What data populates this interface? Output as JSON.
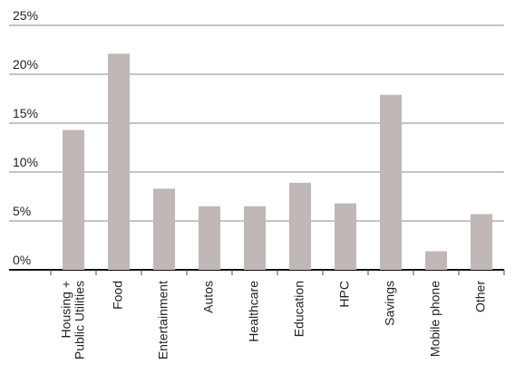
{
  "chart_data": {
    "type": "bar",
    "categories": [
      "Housing +\nPublic Utilities",
      "Food",
      "Entertainment",
      "Autos",
      "Healthcare",
      "Education",
      "HPC",
      "Savings",
      "Mobile phone",
      "Other"
    ],
    "values": [
      14.3,
      22.1,
      8.3,
      6.5,
      6.5,
      8.9,
      6.8,
      17.9,
      1.9,
      5.7
    ],
    "color": "#c0b8b6",
    "ylim": [
      0,
      25
    ],
    "yticks": [
      {
        "value": 0,
        "label": "0%"
      },
      {
        "value": 5,
        "label": "5%"
      },
      {
        "value": 10,
        "label": "10%"
      },
      {
        "value": 15,
        "label": "15%"
      },
      {
        "value": 20,
        "label": "20%"
      },
      {
        "value": 25,
        "label": "25%"
      }
    ],
    "grid": true
  }
}
